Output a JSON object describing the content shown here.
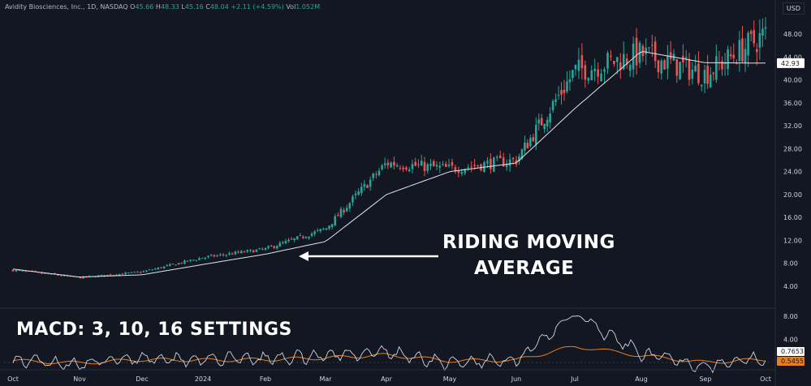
{
  "header": {
    "symbol": "Avidity Biosciences, Inc., 1D, NASDAQ",
    "o_label": "O",
    "o_value": "45.66",
    "h_label": "H",
    "h_value": "48.33",
    "l_label": "L",
    "l_value": "45.16",
    "c_label": "C",
    "c_value": "48.04",
    "change": "+2.11 (+4.59%)",
    "vol_label": "Vol",
    "vol_value": "1.052M",
    "currency": "USD"
  },
  "annotations": {
    "riding_line1": "RIDING MOVING",
    "riding_line2": "AVERAGE",
    "macd_settings": "MACD:  3, 10, 16 SETTINGS"
  },
  "colors": {
    "background": "#131722",
    "up": "#26a69a",
    "down": "#ef5350",
    "ma": "#e0e3eb",
    "macd_line": "#d1d4dc",
    "signal_line": "#e67e22",
    "text": "#d1d4dc"
  },
  "chart_data": [
    {
      "type": "candlestick",
      "title": "Avidity Biosciences, Inc., 1D, NASDAQ",
      "x_ticks": [
        "Oct",
        "Nov",
        "Dec",
        "2024",
        "Feb",
        "Mar",
        "Apr",
        "May",
        "Jun",
        "Jul",
        "Aug",
        "Sep",
        "Oct"
      ],
      "y_ticks": [
        4.0,
        8.0,
        12.0,
        16.0,
        20.0,
        24.0,
        28.0,
        32.0,
        36.0,
        40.0,
        44.0,
        48.0
      ],
      "y_tick_labels": [
        "4.00",
        "8.00",
        "12.00",
        "16.00",
        "20.00",
        "24.00",
        "28.00",
        "32.00",
        "36.00",
        "40.00",
        "44.00",
        "48.00"
      ],
      "ylim": [
        2,
        50
      ],
      "last_price_label": "42.93",
      "close_series_monthly": {
        "months": [
          "Oct",
          "Nov",
          "Dec",
          "2024",
          "Feb",
          "Mar",
          "Apr",
          "May",
          "Jun",
          "Jul",
          "Aug",
          "Sep",
          "Oct"
        ],
        "close": [
          6.8,
          5.5,
          6.5,
          9.0,
          10.5,
          14.0,
          25.5,
          24.5,
          26.0,
          41.5,
          44.5,
          41.0,
          48.0
        ]
      },
      "moving_average_monthly": [
        7.0,
        5.6,
        6.0,
        7.8,
        9.6,
        11.8,
        20.0,
        24.0,
        25.5,
        35.0,
        45.0,
        43.0,
        42.93
      ],
      "legend": "none",
      "grid": false
    },
    {
      "type": "line",
      "title": "MACD",
      "y_ticks": [
        0,
        4.0,
        8.0
      ],
      "y_tick_labels": [
        "",
        "4.00",
        "8.00"
      ],
      "ylim": [
        -1.5,
        9
      ],
      "series": [
        {
          "name": "MACD",
          "value_label": "0.7653"
        },
        {
          "name": "Signal",
          "value_label": "0.5455"
        }
      ],
      "macd_monthly": [
        0.4,
        -0.3,
        0.9,
        0.5,
        0.6,
        1.2,
        1.8,
        -0.2,
        0.5,
        8.0,
        1.5,
        -0.6,
        0.77
      ],
      "signal_monthly": [
        0.3,
        -0.1,
        0.5,
        0.4,
        0.5,
        0.8,
        1.3,
        0.3,
        0.4,
        2.8,
        1.2,
        0.0,
        0.55
      ]
    }
  ]
}
